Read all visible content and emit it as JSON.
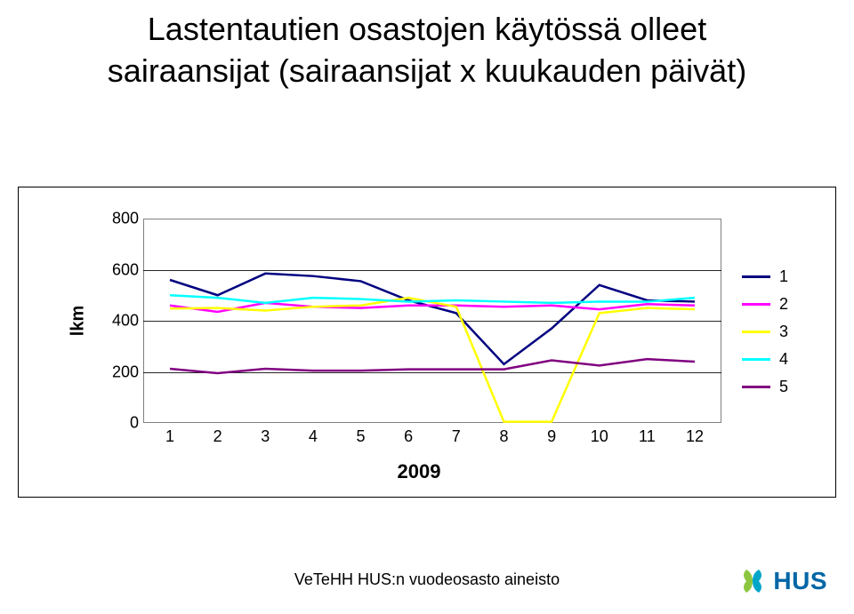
{
  "title": {
    "line1": "Lastentautien osastojen käytössä olleet",
    "line2": "sairaansijat (sairaansijat x kuukauden päivät)",
    "fontsize": 36,
    "color": "#000000"
  },
  "chart": {
    "type": "line",
    "ylabel": "lkm",
    "xlabel": "2009",
    "label_fontsize": 20,
    "tick_fontsize": 18,
    "background_color": "#ffffff",
    "grid_color": "#000000",
    "border_color": "#808080",
    "ylim": [
      0,
      800
    ],
    "yticks": [
      0,
      200,
      400,
      600,
      800
    ],
    "xticks": [
      1,
      2,
      3,
      4,
      5,
      6,
      7,
      8,
      9,
      10,
      11,
      12
    ],
    "line_width": 2.5,
    "series": [
      {
        "name": "1",
        "color": "#000080",
        "values": [
          560,
          500,
          585,
          575,
          555,
          480,
          430,
          230,
          370,
          540,
          480,
          475
        ]
      },
      {
        "name": "2",
        "color": "#ff00ff",
        "values": [
          460,
          435,
          470,
          455,
          450,
          460,
          460,
          455,
          460,
          445,
          465,
          460
        ]
      },
      {
        "name": "3",
        "color": "#ffff00",
        "values": [
          448,
          450,
          440,
          455,
          460,
          490,
          455,
          5,
          5,
          430,
          450,
          445
        ]
      },
      {
        "name": "4",
        "color": "#00ffff",
        "values": [
          500,
          490,
          470,
          490,
          485,
          475,
          480,
          475,
          470,
          475,
          475,
          490
        ]
      },
      {
        "name": "5",
        "color": "#800080",
        "values": [
          212,
          195,
          212,
          205,
          205,
          210,
          210,
          210,
          245,
          225,
          250,
          240
        ]
      }
    ],
    "legend": {
      "position": "right",
      "items": [
        "1",
        "2",
        "3",
        "4",
        "5"
      ],
      "colors": [
        "#000080",
        "#ff00ff",
        "#ffff00",
        "#00ffff",
        "#800080"
      ]
    }
  },
  "footer": {
    "text": "VeTeHH HUS:n vuodeosasto aineisto",
    "fontsize": 18
  },
  "logo": {
    "text": "HUS",
    "text_color": "#0066a6",
    "accent1": "#8cc63f",
    "accent2": "#00a5c8"
  }
}
